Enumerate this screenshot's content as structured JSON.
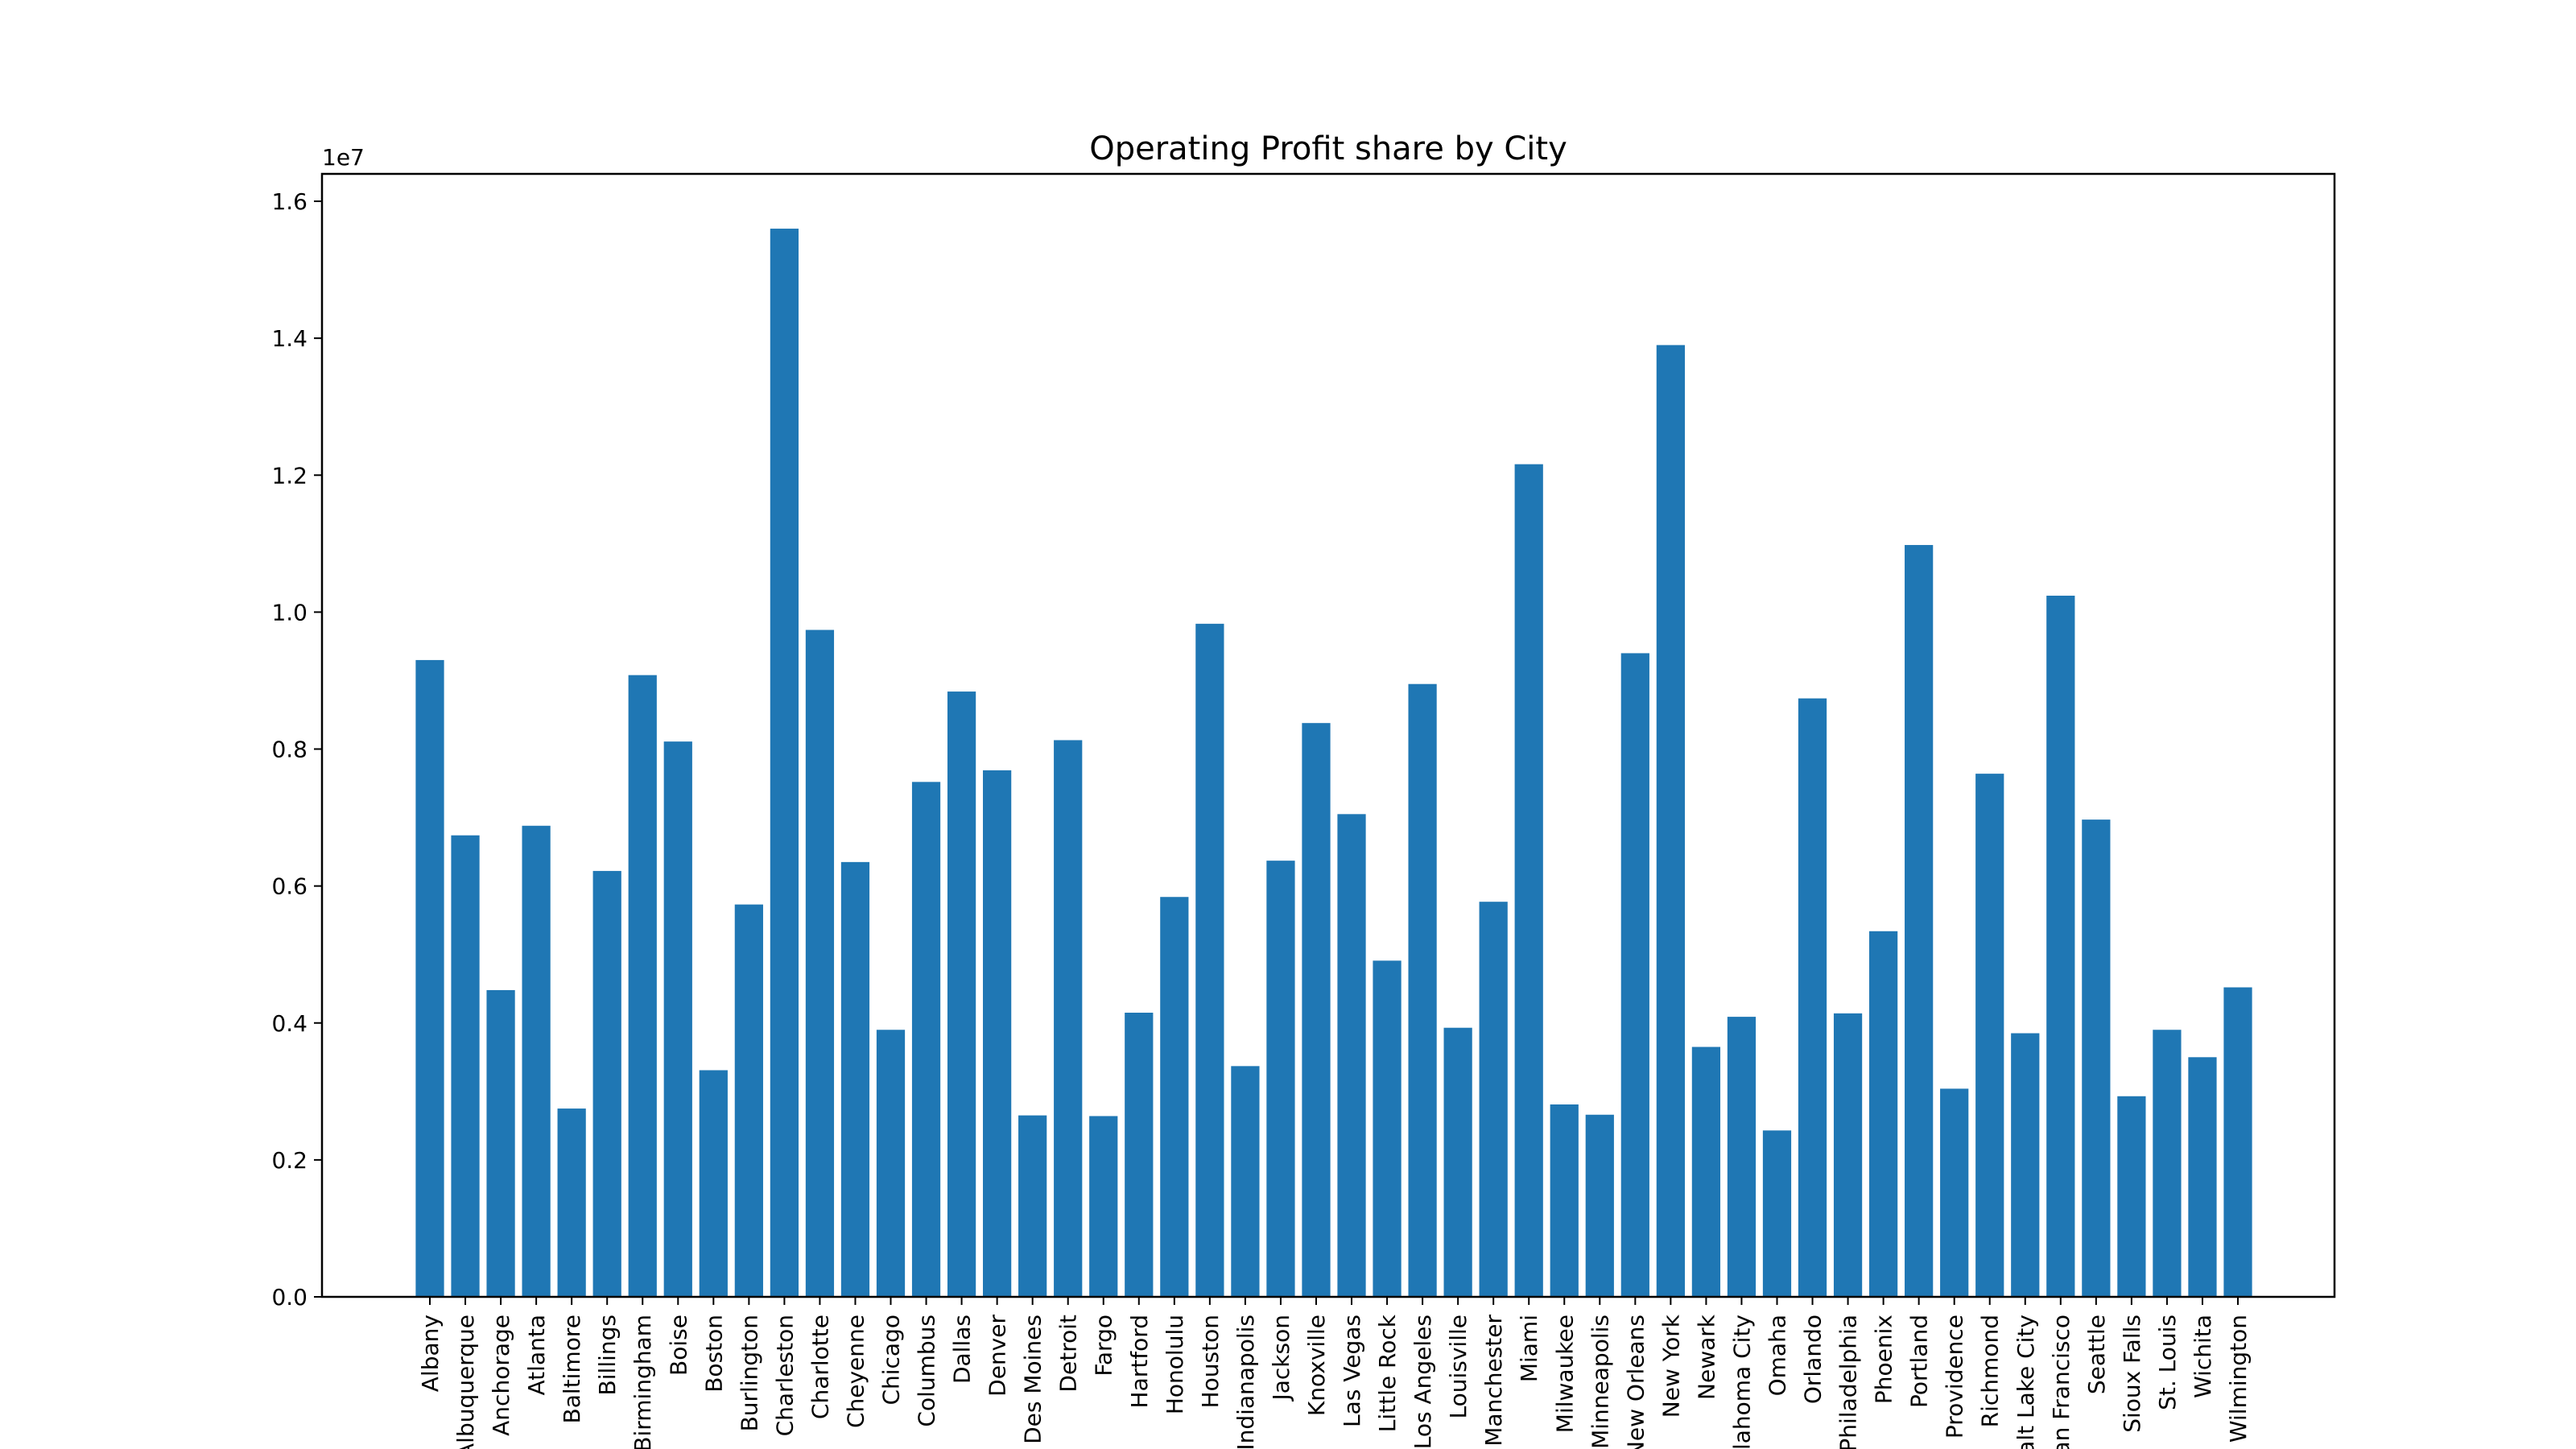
{
  "chart_data": {
    "type": "bar",
    "title": "Operating Profit share by City",
    "xlabel": "",
    "ylabel": "",
    "y_scale_note": "1e7",
    "ylim": [
      0,
      16400000.0
    ],
    "yticks": [
      0,
      2000000,
      4000000,
      6000000,
      8000000,
      10000000,
      12000000,
      14000000,
      16000000
    ],
    "ytick_labels": [
      "0.0",
      "0.2",
      "0.4",
      "0.6",
      "0.8",
      "1.0",
      "1.2",
      "1.4",
      "1.6"
    ],
    "bar_color": "#1f77b4",
    "grid": false,
    "categories": [
      "Albany",
      "Albuquerque",
      "Anchorage",
      "Atlanta",
      "Baltimore",
      "Billings",
      "Birmingham",
      "Boise",
      "Boston",
      "Burlington",
      "Charleston",
      "Charlotte",
      "Cheyenne",
      "Chicago",
      "Columbus",
      "Dallas",
      "Denver",
      "Des Moines",
      "Detroit",
      "Fargo",
      "Hartford",
      "Honolulu",
      "Houston",
      "Indianapolis",
      "Jackson",
      "Knoxville",
      "Las Vegas",
      "Little Rock",
      "Los Angeles",
      "Louisville",
      "Manchester",
      "Miami",
      "Milwaukee",
      "Minneapolis",
      "New Orleans",
      "New York",
      "Newark",
      "Oklahoma City",
      "Omaha",
      "Orlando",
      "Philadelphia",
      "Phoenix",
      "Portland",
      "Providence",
      "Richmond",
      "Salt Lake City",
      "San Francisco",
      "Seattle",
      "Sioux Falls",
      "St. Louis",
      "Wichita",
      "Wilmington"
    ],
    "values": [
      9300000,
      6740000,
      4480000,
      6880000,
      2750000,
      6220000,
      9080000,
      8110000,
      3310000,
      5730000,
      15600000,
      9740000,
      6350000,
      3900000,
      7520000,
      8840000,
      7690000,
      2650000,
      8130000,
      2640000,
      4150000,
      5840000,
      9830000,
      3370000,
      6370000,
      8380000,
      7050000,
      4910000,
      8950000,
      3930000,
      5770000,
      12160000,
      2810000,
      2660000,
      9400000,
      13900000,
      3650000,
      4090000,
      2430000,
      8740000,
      4140000,
      5340000,
      10980000,
      3040000,
      7640000,
      3850000,
      10240000,
      6970000,
      2930000,
      3900000,
      3500000,
      4520000
    ]
  }
}
